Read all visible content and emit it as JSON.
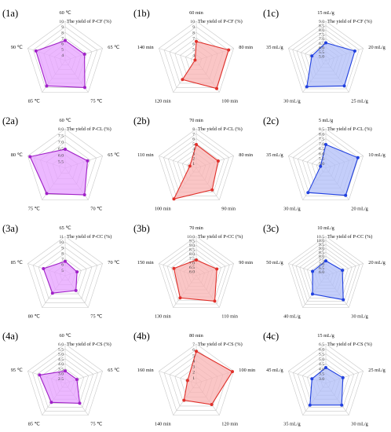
{
  "chart_data": [
    {
      "panel_id": "1a",
      "type": "radar",
      "subtitle": "The yield of P-CF (%)",
      "axes": [
        "60 ℃",
        "65 ℃",
        "75 ℃",
        "85 ℃",
        "90 ℃"
      ],
      "rings": [
        "4",
        "5",
        "6",
        "7",
        "8",
        "9",
        "10"
      ],
      "rmin": 4,
      "rmax": 10,
      "values": [
        7.05,
        7.1,
        9.1,
        8.8,
        8.7
      ],
      "color": "#a020c8",
      "fill": "#e6a0ff"
    },
    {
      "panel_id": "1b",
      "type": "radar",
      "subtitle": "The yield of P-CF (%)",
      "axes": [
        "60 min",
        "80 min",
        "100 min",
        "120 min",
        "140 min"
      ],
      "rings": [
        "4",
        "5",
        "6",
        "7",
        "8",
        "9",
        "10"
      ],
      "rmin": 4,
      "rmax": 10,
      "values": [
        6.9,
        9.2,
        9.3,
        7.6,
        4.2
      ],
      "color": "#e0302a",
      "fill": "#f8b3b3"
    },
    {
      "panel_id": "1c",
      "type": "radar",
      "subtitle": "The yield of P-CF (%)",
      "axes": [
        "15 mL/g",
        "20 mL/g",
        "25 mL/g",
        "30 mL/g",
        "35 mL/g"
      ],
      "rings": [
        "5.0",
        "5.5",
        "6.0",
        "6.5",
        "7.0",
        "7.5",
        "8.0",
        "8.5",
        "9.0"
      ],
      "rmin": 5,
      "rmax": 9,
      "values": [
        6.8,
        8.1,
        8.2,
        8.3,
        6.5
      ],
      "color": "#2040e0",
      "fill": "#b0bdf8"
    },
    {
      "panel_id": "2a",
      "type": "radar",
      "subtitle": "The yield of P-CL (%)",
      "axes": [
        "60 ℃",
        "65 ℃",
        "70 ℃",
        "75 ℃",
        "80 ℃"
      ],
      "rings": [
        "5.5",
        "6.0",
        "6.5",
        "7.0",
        "7.5",
        "8.0"
      ],
      "rmin": 5.5,
      "rmax": 8,
      "values": [
        6.7,
        7.0,
        7.6,
        7.5,
        7.85
      ],
      "color": "#a020c8",
      "fill": "#e6a0ff"
    },
    {
      "panel_id": "2b",
      "type": "radar",
      "subtitle": "The yield of P-CL (%)",
      "axes": [
        "70 min",
        "80 min",
        "90 min",
        "100 min",
        "110 min"
      ],
      "rings": [
        "1",
        "2",
        "3",
        "4",
        "5",
        "6",
        "7",
        "8"
      ],
      "rmin": 1,
      "rmax": 8,
      "values": [
        5.2,
        5.1,
        5.8,
        7.8,
        2.2
      ],
      "color": "#e0302a",
      "fill": "#f8b3b3"
    },
    {
      "panel_id": "2c",
      "type": "radar",
      "subtitle": "The yield of P-CL (%)",
      "axes": [
        "5 mL/g",
        "10 mL/g",
        "20 mL/g",
        "30 mL/g",
        "35 mL/g"
      ],
      "rings": [
        "5.0",
        "5.5",
        "6.0",
        "6.5",
        "7.0",
        "7.5",
        "8.0",
        "8.5"
      ],
      "rmin": 5,
      "rmax": 8.5,
      "values": [
        7.1,
        8.0,
        8.0,
        7.7,
        5.5
      ],
      "color": "#2040e0",
      "fill": "#b0bdf8"
    },
    {
      "panel_id": "3a",
      "type": "radar",
      "subtitle": "The yield of P-CC (%)",
      "axes": [
        "65 ℃",
        "70 ℃",
        "75 ℃",
        "80 ℃",
        "85 ℃"
      ],
      "rings": [
        "5",
        "6",
        "7",
        "8",
        "9",
        "10",
        "11"
      ],
      "rmin": 5,
      "rmax": 11,
      "values": [
        7.2,
        6.9,
        7.8,
        8.3,
        8.5
      ],
      "color": "#a020c8",
      "fill": "#e6a0ff"
    },
    {
      "panel_id": "3b",
      "type": "radar",
      "subtitle": "The yield of P-CC (%)",
      "axes": [
        "70 min",
        "90 min",
        "110 min",
        "130 min",
        "150 min"
      ],
      "rings": [
        "6.0",
        "6.5",
        "7.0",
        "7.5",
        "8.0",
        "8.5",
        "9.0",
        "9.5",
        "10.0"
      ],
      "rmin": 6,
      "rmax": 10,
      "values": [
        7.6,
        8.2,
        9.2,
        8.8,
        8.4
      ],
      "color": "#e0302a",
      "fill": "#f8b3b3"
    },
    {
      "panel_id": "3c",
      "type": "radar",
      "subtitle": "The yield of P-CC (%)",
      "axes": [
        "10 mL/g",
        "20 mL/g",
        "30 mL/g",
        "40 mL/g",
        "50 mL/g"
      ],
      "rings": [
        "6.0",
        "6.5",
        "7.0",
        "7.5",
        "8.0",
        "8.5",
        "9.0",
        "9.5",
        "10.0",
        "10.5"
      ],
      "rmin": 6,
      "rmax": 10.5,
      "values": [
        7.7,
        8.0,
        9.4,
        8.6,
        7.6
      ],
      "color": "#2040e0",
      "fill": "#b0bdf8"
    },
    {
      "panel_id": "4a",
      "type": "radar",
      "subtitle": "The yield of P-CS (%)",
      "axes": [
        "60 ℃",
        "65 ℃",
        "75 ℃",
        "85 ℃",
        "95 ℃"
      ],
      "rings": [
        "2.5",
        "3.0",
        "3.5",
        "4.0",
        "4.5",
        "5.0",
        "5.5",
        "6.0"
      ],
      "rmin": 2.5,
      "rmax": 6,
      "values": [
        3.6,
        3.6,
        4.7,
        4.6,
        4.9
      ],
      "color": "#a020c8",
      "fill": "#e6a0ff"
    },
    {
      "panel_id": "4b",
      "type": "radar",
      "subtitle": "The yield of P-CS (%)",
      "axes": [
        "80 min",
        "100 min",
        "120 min",
        "140 min",
        "160 min"
      ],
      "rings": [
        "1",
        "2",
        "3",
        "4",
        "5",
        "6",
        "7"
      ],
      "rmin": 1,
      "rmax": 7,
      "values": [
        5.9,
        6.8,
        5.0,
        4.2,
        2.4
      ],
      "color": "#e0302a",
      "fill": "#f8b3b3"
    },
    {
      "panel_id": "4c",
      "type": "radar",
      "subtitle": "The yield of P-CS (%)",
      "axes": [
        "15 mL/g",
        "25 mL/g",
        "30 mL/g",
        "35 mL/g",
        "45 mL/g"
      ],
      "rings": [
        "3.0",
        "3.5",
        "4.0",
        "4.5",
        "5.0",
        "5.5",
        "6.0",
        "6.5"
      ],
      "rmin": 3,
      "rmax": 6.5,
      "values": [
        4.4,
        4.6,
        5.4,
        5.4,
        4.3
      ],
      "color": "#2040e0",
      "fill": "#b0bdf8"
    }
  ]
}
